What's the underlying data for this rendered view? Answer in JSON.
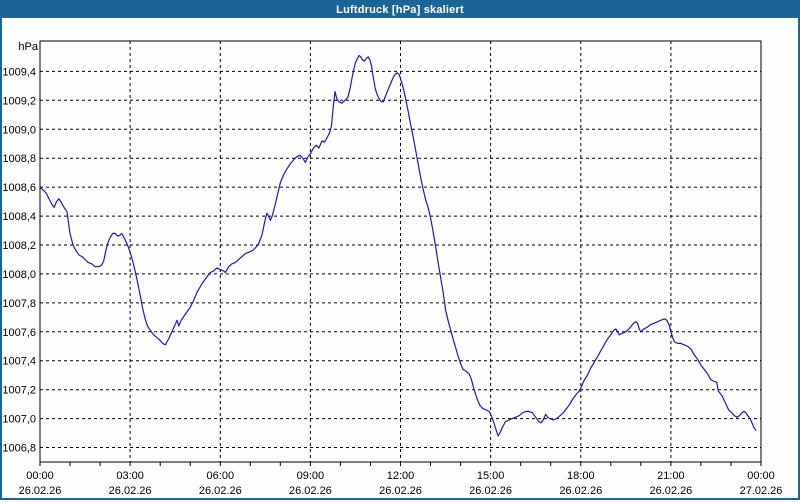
{
  "window": {
    "title": "Luftdruck [hPa] skaliert"
  },
  "colors": {
    "title_bar": "#1d6496",
    "window_border": "#1d6496",
    "background": "#fdfefd",
    "plot_border": "#000000",
    "gridline": "#000000",
    "tick": "#000000",
    "label_text": "#000000",
    "line": "#1a1ab3"
  },
  "chart_data": {
    "type": "line",
    "title": "Luftdruck [hPa] skaliert",
    "ylabel": "hPa",
    "unit": "hPa",
    "grid": true,
    "legend": "none",
    "ylim": [
      1006.7,
      1009.61
    ],
    "xlim_hours": [
      0,
      24
    ],
    "minor_x_tick_hours": 1,
    "y_ticks": [
      {
        "value": 1006.8,
        "label": "1006,8"
      },
      {
        "value": 1007.0,
        "label": "1007,0"
      },
      {
        "value": 1007.2,
        "label": "1007,2"
      },
      {
        "value": 1007.4,
        "label": "1007,4"
      },
      {
        "value": 1007.6,
        "label": "1007,6"
      },
      {
        "value": 1007.8,
        "label": "1007,8"
      },
      {
        "value": 1008.0,
        "label": "1008,0"
      },
      {
        "value": 1008.2,
        "label": "1008,2"
      },
      {
        "value": 1008.4,
        "label": "1008,4"
      },
      {
        "value": 1008.6,
        "label": "1008,6"
      },
      {
        "value": 1008.8,
        "label": "1008,8"
      },
      {
        "value": 1009.0,
        "label": "1009,0"
      },
      {
        "value": 1009.2,
        "label": "1009,2"
      },
      {
        "value": 1009.4,
        "label": "1009,4"
      }
    ],
    "x_ticks": [
      {
        "hour": 0,
        "time": "00:00",
        "date": "26.02.26"
      },
      {
        "hour": 3,
        "time": "03:00",
        "date": "26.02.26"
      },
      {
        "hour": 6,
        "time": "06:00",
        "date": "26.02.26"
      },
      {
        "hour": 9,
        "time": "09:00",
        "date": "26.02.26"
      },
      {
        "hour": 12,
        "time": "12:00",
        "date": "26.02.26"
      },
      {
        "hour": 15,
        "time": "15:00",
        "date": "26.02.26"
      },
      {
        "hour": 18,
        "time": "18:00",
        "date": "26.02.26"
      },
      {
        "hour": 21,
        "time": "21:00",
        "date": "26.02.26"
      },
      {
        "hour": 24,
        "time": "00:00",
        "date": "27.02.26"
      }
    ],
    "series": [
      {
        "name": "Luftdruck",
        "color": "#1a1ab3",
        "points": [
          [
            0.0,
            1008.6
          ],
          [
            0.1,
            1008.58
          ],
          [
            0.2,
            1008.56
          ],
          [
            0.3,
            1008.52
          ],
          [
            0.4,
            1008.48
          ],
          [
            0.47,
            1008.46
          ],
          [
            0.55,
            1008.5
          ],
          [
            0.63,
            1008.52
          ],
          [
            0.72,
            1008.49
          ],
          [
            0.8,
            1008.46
          ],
          [
            0.9,
            1008.43
          ],
          [
            1.0,
            1008.28
          ],
          [
            1.1,
            1008.2
          ],
          [
            1.2,
            1008.16
          ],
          [
            1.3,
            1008.13
          ],
          [
            1.4,
            1008.12
          ],
          [
            1.5,
            1008.1
          ],
          [
            1.6,
            1008.08
          ],
          [
            1.72,
            1008.07
          ],
          [
            1.83,
            1008.05
          ],
          [
            1.95,
            1008.05
          ],
          [
            2.05,
            1008.06
          ],
          [
            2.12,
            1008.09
          ],
          [
            2.18,
            1008.15
          ],
          [
            2.25,
            1008.21
          ],
          [
            2.33,
            1008.25
          ],
          [
            2.42,
            1008.28
          ],
          [
            2.5,
            1008.28
          ],
          [
            2.6,
            1008.26
          ],
          [
            2.67,
            1008.27
          ],
          [
            2.72,
            1008.28
          ],
          [
            2.8,
            1008.25
          ],
          [
            2.89,
            1008.21
          ],
          [
            2.95,
            1008.18
          ],
          [
            3.0,
            1008.15
          ],
          [
            3.06,
            1008.11
          ],
          [
            3.12,
            1008.06
          ],
          [
            3.18,
            1008.01
          ],
          [
            3.25,
            1007.94
          ],
          [
            3.33,
            1007.86
          ],
          [
            3.42,
            1007.76
          ],
          [
            3.5,
            1007.69
          ],
          [
            3.58,
            1007.64
          ],
          [
            3.67,
            1007.61
          ],
          [
            3.78,
            1007.58
          ],
          [
            3.89,
            1007.56
          ],
          [
            4.0,
            1007.54
          ],
          [
            4.08,
            1007.52
          ],
          [
            4.17,
            1007.51
          ],
          [
            4.28,
            1007.55
          ],
          [
            4.39,
            1007.6
          ],
          [
            4.5,
            1007.65
          ],
          [
            4.56,
            1007.68
          ],
          [
            4.62,
            1007.64
          ],
          [
            4.7,
            1007.68
          ],
          [
            4.8,
            1007.71
          ],
          [
            4.9,
            1007.74
          ],
          [
            5.0,
            1007.77
          ],
          [
            5.1,
            1007.81
          ],
          [
            5.22,
            1007.87
          ],
          [
            5.33,
            1007.91
          ],
          [
            5.45,
            1007.95
          ],
          [
            5.56,
            1007.98
          ],
          [
            5.67,
            1008.01
          ],
          [
            5.78,
            1008.02
          ],
          [
            5.89,
            1008.04
          ],
          [
            6.0,
            1008.03
          ],
          [
            6.11,
            1008.02
          ],
          [
            6.17,
            1008.01
          ],
          [
            6.28,
            1008.05
          ],
          [
            6.39,
            1008.07
          ],
          [
            6.5,
            1008.08
          ],
          [
            6.61,
            1008.1
          ],
          [
            6.72,
            1008.12
          ],
          [
            6.83,
            1008.14
          ],
          [
            6.95,
            1008.15
          ],
          [
            7.06,
            1008.16
          ],
          [
            7.17,
            1008.18
          ],
          [
            7.28,
            1008.21
          ],
          [
            7.39,
            1008.27
          ],
          [
            7.48,
            1008.36
          ],
          [
            7.55,
            1008.42
          ],
          [
            7.61,
            1008.4
          ],
          [
            7.67,
            1008.37
          ],
          [
            7.73,
            1008.4
          ],
          [
            7.83,
            1008.48
          ],
          [
            7.92,
            1008.56
          ],
          [
            8.0,
            1008.63
          ],
          [
            8.1,
            1008.68
          ],
          [
            8.2,
            1008.72
          ],
          [
            8.33,
            1008.76
          ],
          [
            8.45,
            1008.79
          ],
          [
            8.55,
            1008.81
          ],
          [
            8.65,
            1008.82
          ],
          [
            8.75,
            1008.8
          ],
          [
            8.83,
            1008.77
          ],
          [
            8.92,
            1008.81
          ],
          [
            9.0,
            1008.83
          ],
          [
            9.1,
            1008.87
          ],
          [
            9.2,
            1008.89
          ],
          [
            9.28,
            1008.87
          ],
          [
            9.39,
            1008.92
          ],
          [
            9.47,
            1008.91
          ],
          [
            9.55,
            1008.94
          ],
          [
            9.63,
            1008.97
          ],
          [
            9.7,
            1009.02
          ],
          [
            9.76,
            1009.15
          ],
          [
            9.82,
            1009.26
          ],
          [
            9.88,
            1009.21
          ],
          [
            9.95,
            1009.19
          ],
          [
            10.05,
            1009.18
          ],
          [
            10.15,
            1009.2
          ],
          [
            10.25,
            1009.22
          ],
          [
            10.33,
            1009.29
          ],
          [
            10.42,
            1009.39
          ],
          [
            10.5,
            1009.46
          ],
          [
            10.57,
            1009.49
          ],
          [
            10.62,
            1009.51
          ],
          [
            10.68,
            1009.5
          ],
          [
            10.74,
            1009.48
          ],
          [
            10.8,
            1009.47
          ],
          [
            10.86,
            1009.49
          ],
          [
            10.92,
            1009.5
          ],
          [
            10.98,
            1009.48
          ],
          [
            11.04,
            1009.43
          ],
          [
            11.1,
            1009.35
          ],
          [
            11.16,
            1009.28
          ],
          [
            11.22,
            1009.24
          ],
          [
            11.29,
            1009.21
          ],
          [
            11.36,
            1009.19
          ],
          [
            11.43,
            1009.19
          ],
          [
            11.5,
            1009.23
          ],
          [
            11.58,
            1009.27
          ],
          [
            11.66,
            1009.31
          ],
          [
            11.74,
            1009.35
          ],
          [
            11.82,
            1009.38
          ],
          [
            11.89,
            1009.39
          ],
          [
            11.95,
            1009.38
          ],
          [
            12.0,
            1009.35
          ],
          [
            12.06,
            1009.31
          ],
          [
            12.12,
            1009.26
          ],
          [
            12.18,
            1009.2
          ],
          [
            12.25,
            1009.13
          ],
          [
            12.33,
            1009.04
          ],
          [
            12.42,
            1008.95
          ],
          [
            12.5,
            1008.86
          ],
          [
            12.58,
            1008.77
          ],
          [
            12.67,
            1008.67
          ],
          [
            12.75,
            1008.59
          ],
          [
            12.83,
            1008.52
          ],
          [
            12.92,
            1008.46
          ],
          [
            13.0,
            1008.39
          ],
          [
            13.08,
            1008.3
          ],
          [
            13.17,
            1008.19
          ],
          [
            13.25,
            1008.08
          ],
          [
            13.33,
            1007.98
          ],
          [
            13.42,
            1007.87
          ],
          [
            13.5,
            1007.75
          ],
          [
            13.58,
            1007.68
          ],
          [
            13.67,
            1007.61
          ],
          [
            13.78,
            1007.53
          ],
          [
            13.89,
            1007.45
          ],
          [
            14.0,
            1007.38
          ],
          [
            14.08,
            1007.34
          ],
          [
            14.17,
            1007.33
          ],
          [
            14.28,
            1007.31
          ],
          [
            14.36,
            1007.27
          ],
          [
            14.45,
            1007.2
          ],
          [
            14.56,
            1007.13
          ],
          [
            14.65,
            1007.09
          ],
          [
            14.74,
            1007.07
          ],
          [
            14.85,
            1007.06
          ],
          [
            14.95,
            1007.05
          ],
          [
            15.0,
            1007.03
          ],
          [
            15.08,
            1006.99
          ],
          [
            15.17,
            1006.93
          ],
          [
            15.25,
            1006.88
          ],
          [
            15.33,
            1006.91
          ],
          [
            15.42,
            1006.95
          ],
          [
            15.5,
            1006.98
          ],
          [
            15.61,
            1006.99
          ],
          [
            15.72,
            1007.0
          ],
          [
            15.83,
            1007.01
          ],
          [
            15.95,
            1007.02
          ],
          [
            16.06,
            1007.04
          ],
          [
            16.17,
            1007.05
          ],
          [
            16.28,
            1007.05
          ],
          [
            16.39,
            1007.04
          ],
          [
            16.5,
            1007.01
          ],
          [
            16.6,
            1006.98
          ],
          [
            16.67,
            1006.97
          ],
          [
            16.75,
            1006.99
          ],
          [
            16.83,
            1007.03
          ],
          [
            16.9,
            1007.01
          ],
          [
            16.97,
            1007.0
          ],
          [
            17.08,
            1006.99
          ],
          [
            17.2,
            1007.0
          ],
          [
            17.31,
            1007.02
          ],
          [
            17.42,
            1007.04
          ],
          [
            17.53,
            1007.07
          ],
          [
            17.64,
            1007.1
          ],
          [
            17.75,
            1007.14
          ],
          [
            17.86,
            1007.17
          ],
          [
            17.95,
            1007.19
          ],
          [
            18.0,
            1007.21
          ],
          [
            18.1,
            1007.26
          ],
          [
            18.22,
            1007.3
          ],
          [
            18.33,
            1007.35
          ],
          [
            18.45,
            1007.39
          ],
          [
            18.56,
            1007.43
          ],
          [
            18.67,
            1007.47
          ],
          [
            18.78,
            1007.51
          ],
          [
            18.89,
            1007.55
          ],
          [
            19.0,
            1007.58
          ],
          [
            19.1,
            1007.61
          ],
          [
            19.17,
            1007.62
          ],
          [
            19.28,
            1007.58
          ],
          [
            19.39,
            1007.59
          ],
          [
            19.5,
            1007.6
          ],
          [
            19.61,
            1007.62
          ],
          [
            19.72,
            1007.65
          ],
          [
            19.83,
            1007.67
          ],
          [
            19.89,
            1007.66
          ],
          [
            19.95,
            1007.62
          ],
          [
            20.0,
            1007.6
          ],
          [
            20.1,
            1007.62
          ],
          [
            20.2,
            1007.63
          ],
          [
            20.33,
            1007.65
          ],
          [
            20.45,
            1007.66
          ],
          [
            20.56,
            1007.67
          ],
          [
            20.67,
            1007.68
          ],
          [
            20.78,
            1007.69
          ],
          [
            20.86,
            1007.68
          ],
          [
            20.94,
            1007.65
          ],
          [
            21.0,
            1007.6
          ],
          [
            21.06,
            1007.56
          ],
          [
            21.12,
            1007.53
          ],
          [
            21.22,
            1007.52
          ],
          [
            21.33,
            1007.52
          ],
          [
            21.44,
            1007.51
          ],
          [
            21.56,
            1007.5
          ],
          [
            21.67,
            1007.48
          ],
          [
            21.78,
            1007.44
          ],
          [
            21.89,
            1007.41
          ],
          [
            22.0,
            1007.37
          ],
          [
            22.11,
            1007.34
          ],
          [
            22.22,
            1007.31
          ],
          [
            22.33,
            1007.27
          ],
          [
            22.42,
            1007.26
          ],
          [
            22.53,
            1007.25
          ],
          [
            22.58,
            1007.19
          ],
          [
            22.7,
            1007.16
          ],
          [
            22.81,
            1007.11
          ],
          [
            22.92,
            1007.06
          ],
          [
            23.03,
            1007.04
          ],
          [
            23.11,
            1007.02
          ],
          [
            23.2,
            1007.01
          ],
          [
            23.28,
            1007.02
          ],
          [
            23.36,
            1007.04
          ],
          [
            23.44,
            1007.05
          ],
          [
            23.5,
            1007.04
          ],
          [
            23.56,
            1007.02
          ],
          [
            23.64,
            1007.0
          ],
          [
            23.7,
            1006.97
          ],
          [
            23.76,
            1006.94
          ],
          [
            23.83,
            1006.92
          ]
        ]
      }
    ]
  }
}
